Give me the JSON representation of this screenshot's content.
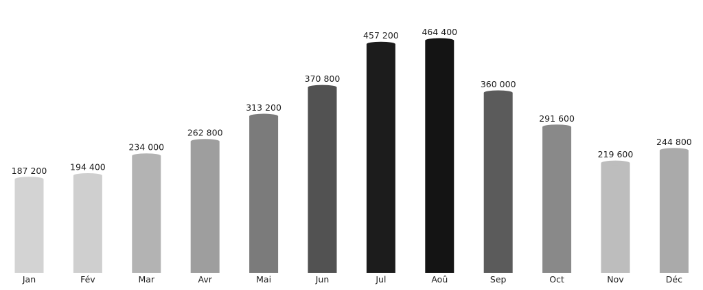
{
  "chart_data": {
    "type": "bar",
    "title": "",
    "xlabel": "",
    "ylabel": "",
    "categories": [
      "Jan",
      "Fév",
      "Mar",
      "Avr",
      "Mai",
      "Jun",
      "Jul",
      "Aoû",
      "Sep",
      "Oct",
      "Nov",
      "Déc"
    ],
    "values": [
      187200,
      194400,
      234000,
      262800,
      313200,
      370800,
      457200,
      464400,
      360000,
      291600,
      219600,
      244800
    ],
    "value_labels": [
      "187 200",
      "194 400",
      "234 000",
      "262 800",
      "313 200",
      "370 800",
      "457 200",
      "464 400",
      "360 000",
      "291 600",
      "219 600",
      "244 800"
    ],
    "bar_colors": [
      "#d3d3d3",
      "#cfcfcf",
      "#b3b3b3",
      "#9e9e9e",
      "#7b7b7b",
      "#525252",
      "#1c1c1c",
      "#141414",
      "#5b5b5b",
      "#898989",
      "#bdbdbd",
      "#aaaaaa"
    ],
    "ylim": [
      0,
      464400
    ],
    "grid": false,
    "legend": "none",
    "axis_visible": false
  }
}
